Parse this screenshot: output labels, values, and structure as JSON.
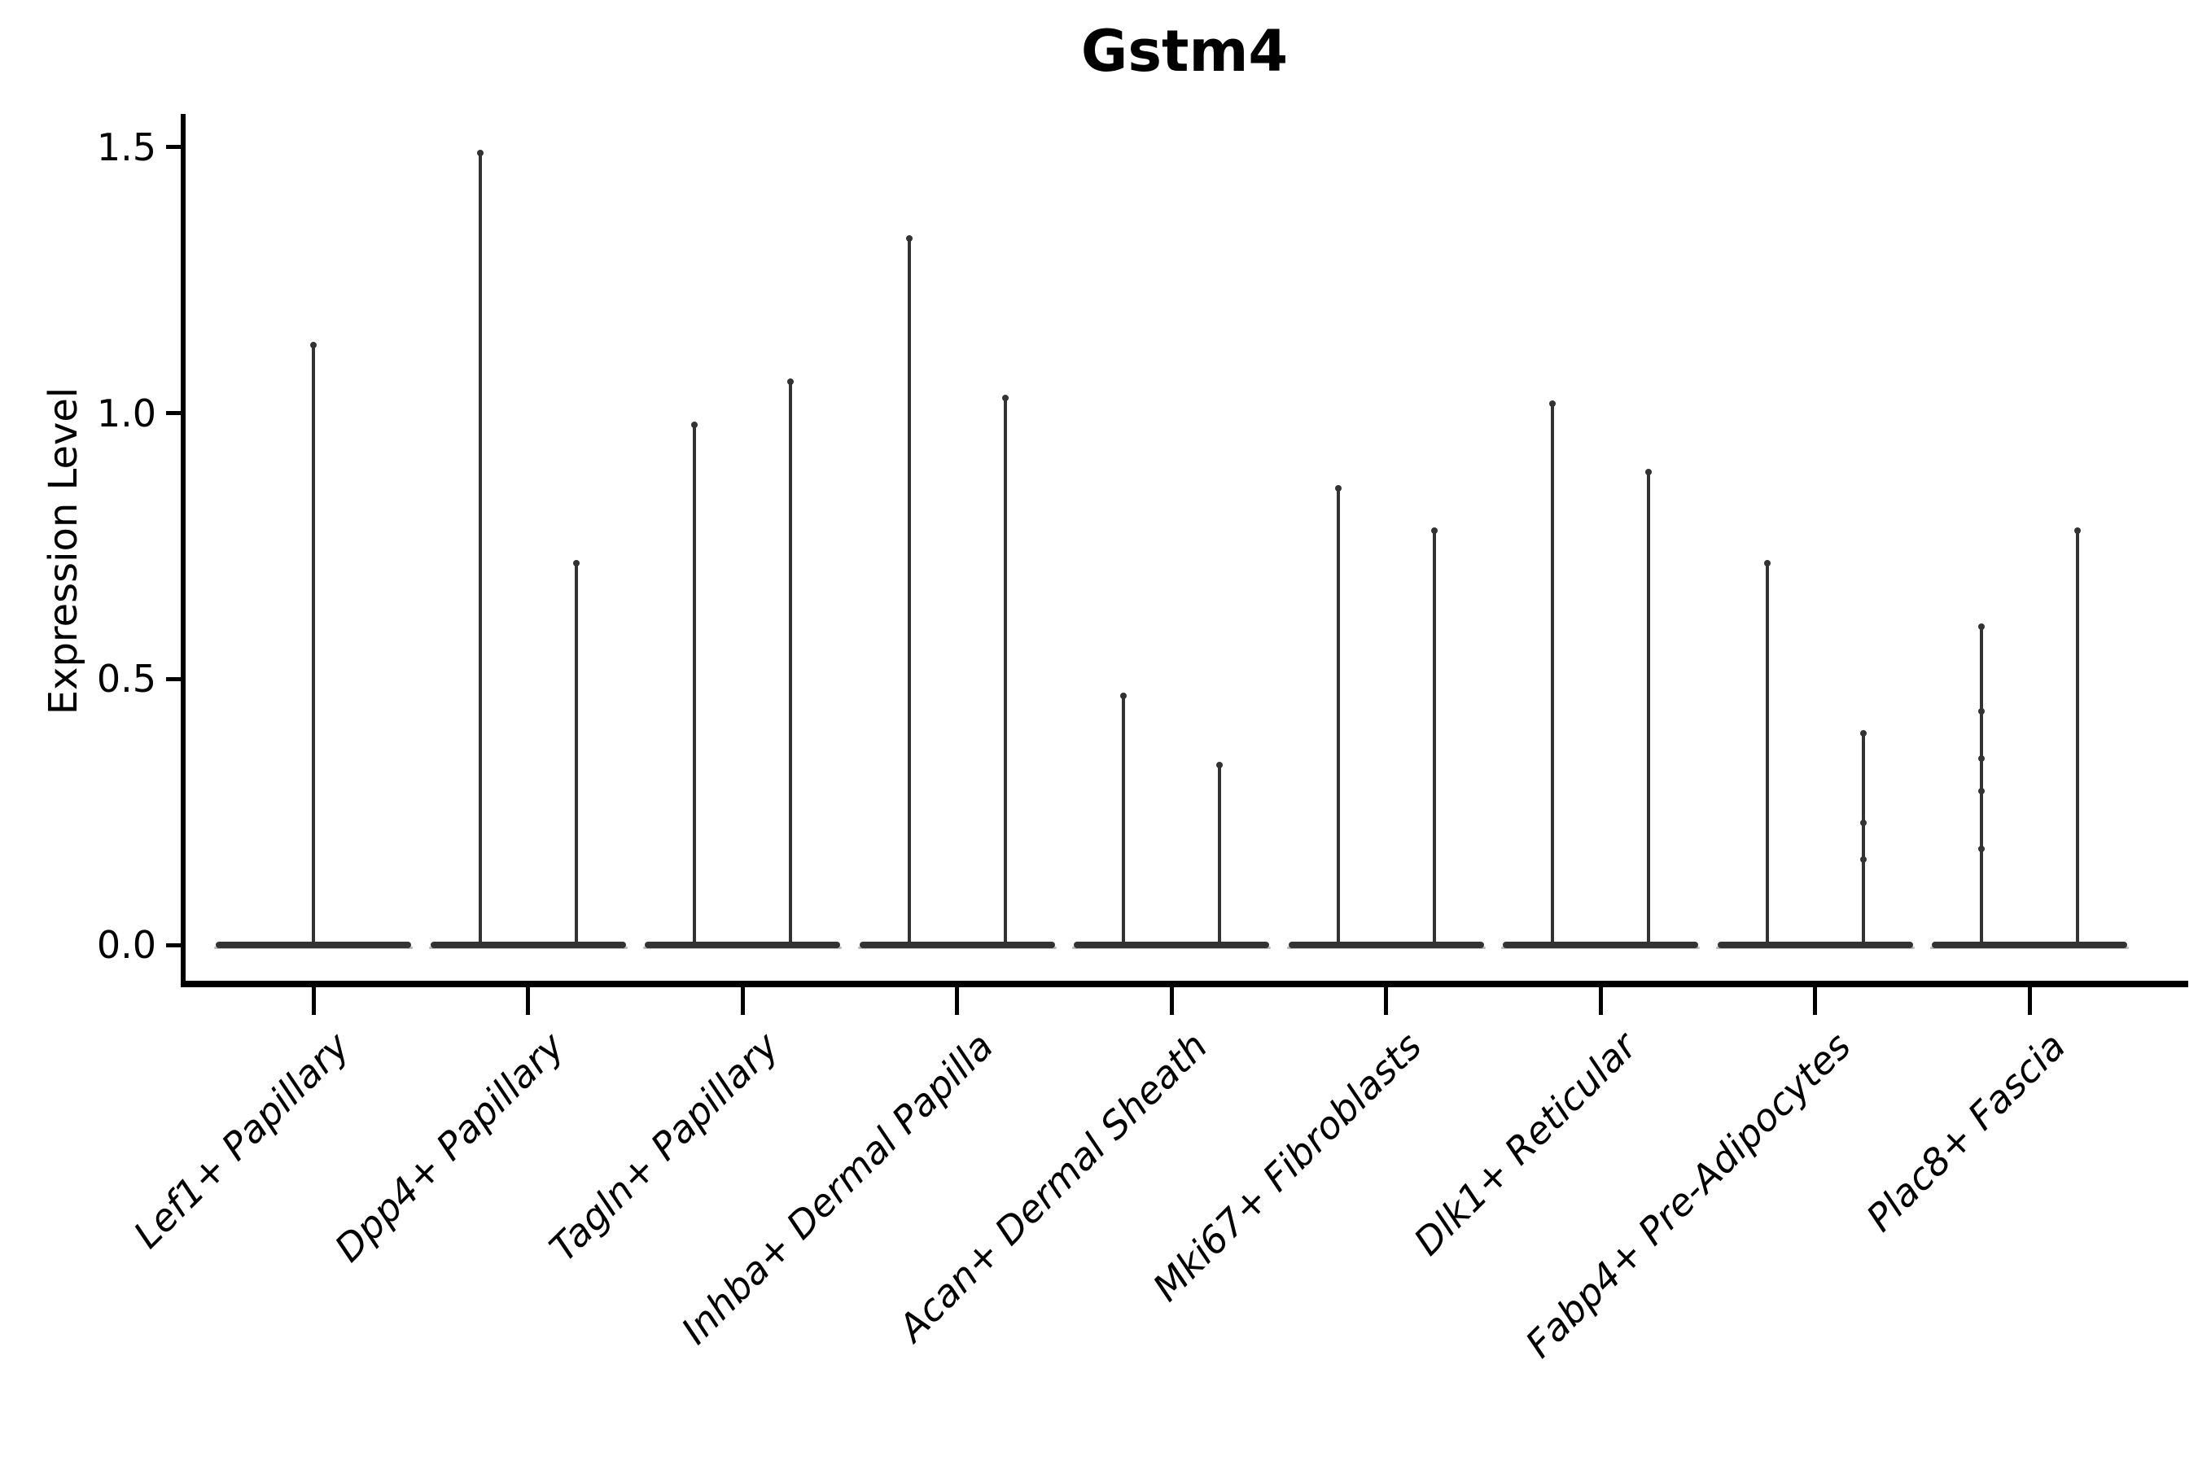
{
  "title": "Gstm4",
  "y_axis": {
    "label": "Expression Level",
    "tick_labels": [
      "1.5",
      "1.0",
      "0.5",
      "0.0"
    ]
  },
  "chart_data": {
    "type": "violin",
    "title": "Gstm4",
    "xlabel": "",
    "ylabel": "Expression Level",
    "ylim": [
      -0.07,
      1.56
    ],
    "yticks": [
      1.5,
      1.0,
      0.5,
      0.0
    ],
    "grid": false,
    "legend": "none",
    "violin_color": "#333333",
    "note": "Expression mostly zero in all groups: each violin collapses to a wide flat base at 0 with a thin spike to the maximum expressed value. First category has one violin; all others show two violins side by side.",
    "categories": [
      "Lef1+ Papillary",
      "Dpp4+ Papillary",
      "Tagln+ Papillary",
      "Inhba+ Dermal Papilla",
      "Acan+ Dermal Sheath",
      "Mki67+ Fibroblasts",
      "Dlk1+ Reticular",
      "Fabp4+ Pre-Adipocytes",
      "Plac8+ Fascia"
    ],
    "groups": [
      {
        "category": "Lef1+ Papillary",
        "violins": [
          {
            "base": 0.0,
            "max": 1.13,
            "points": []
          }
        ]
      },
      {
        "category": "Dpp4+ Papillary",
        "violins": [
          {
            "base": 0.0,
            "max": 1.49,
            "points": []
          },
          {
            "base": 0.0,
            "max": 0.72,
            "points": []
          }
        ]
      },
      {
        "category": "Tagln+ Papillary",
        "violins": [
          {
            "base": 0.0,
            "max": 0.98,
            "points": []
          },
          {
            "base": 0.0,
            "max": 1.06,
            "points": []
          }
        ]
      },
      {
        "category": "Inhba+ Dermal Papilla",
        "violins": [
          {
            "base": 0.0,
            "max": 1.33,
            "points": []
          },
          {
            "base": 0.0,
            "max": 1.03,
            "points": []
          }
        ]
      },
      {
        "category": "Acan+ Dermal Sheath",
        "violins": [
          {
            "base": 0.0,
            "max": 0.47,
            "points": []
          },
          {
            "base": 0.0,
            "max": 0.34,
            "points": []
          }
        ]
      },
      {
        "category": "Mki67+ Fibroblasts",
        "violins": [
          {
            "base": 0.0,
            "max": 0.86,
            "points": []
          },
          {
            "base": 0.0,
            "max": 0.78,
            "points": []
          }
        ]
      },
      {
        "category": "Dlk1+ Reticular",
        "violins": [
          {
            "base": 0.0,
            "max": 1.02,
            "points": []
          },
          {
            "base": 0.0,
            "max": 0.89,
            "points": []
          }
        ]
      },
      {
        "category": "Fabp4+ Pre-Adipocytes",
        "violins": [
          {
            "base": 0.0,
            "max": 0.72,
            "points": []
          },
          {
            "base": 0.0,
            "max": 0.4,
            "points": [
              0.23,
              0.16
            ]
          }
        ]
      },
      {
        "category": "Plac8+ Fascia",
        "violins": [
          {
            "base": 0.0,
            "max": 0.6,
            "points": [
              0.44,
              0.35,
              0.29,
              0.18
            ]
          },
          {
            "base": 0.0,
            "max": 0.78,
            "points": []
          }
        ]
      }
    ]
  }
}
